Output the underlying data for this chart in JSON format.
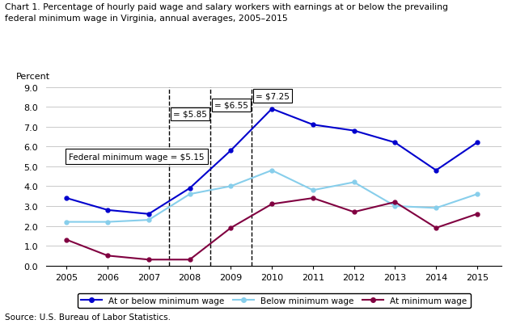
{
  "title_line1": "Chart 1. Percentage of hourly paid wage and salary workers with earnings at or below the prevailing",
  "title_line2": "federal minimum wage in Virginia, annual averages, 2005–2015",
  "ylabel": "Percent",
  "source": "Source: U.S. Bureau of Labor Statistics.",
  "years": [
    2005,
    2006,
    2007,
    2008,
    2009,
    2010,
    2011,
    2012,
    2013,
    2014,
    2015
  ],
  "at_or_below": [
    3.4,
    2.8,
    2.6,
    3.9,
    5.8,
    7.9,
    7.1,
    6.8,
    6.2,
    4.8,
    6.2
  ],
  "below": [
    2.2,
    2.2,
    2.3,
    3.6,
    4.0,
    4.8,
    3.8,
    4.2,
    3.0,
    2.9,
    3.6
  ],
  "at": [
    1.3,
    0.5,
    0.3,
    0.3,
    1.9,
    3.1,
    3.4,
    2.7,
    3.2,
    1.9,
    2.6
  ],
  "color_at_or_below": "#0000CD",
  "color_below": "#87CEEB",
  "color_at": "#800040",
  "ylim": [
    0.0,
    9.0
  ],
  "yticks": [
    0.0,
    1.0,
    2.0,
    3.0,
    4.0,
    5.0,
    6.0,
    7.0,
    8.0,
    9.0
  ],
  "xlim_left": 2004.5,
  "xlim_right": 2015.6
}
